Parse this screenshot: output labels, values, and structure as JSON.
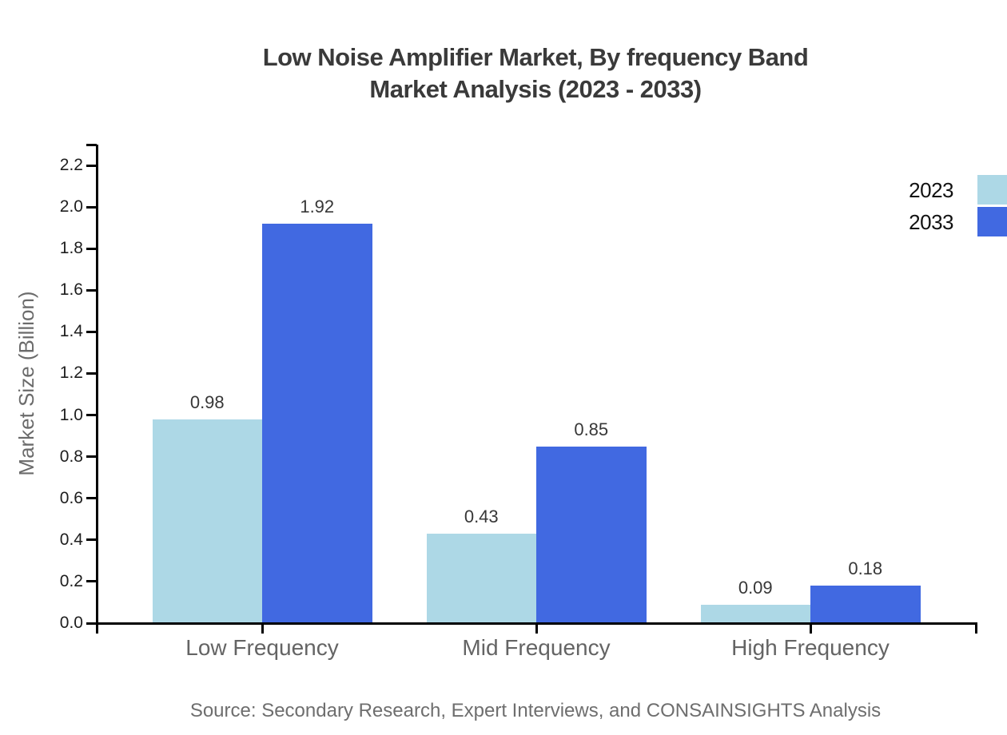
{
  "title": {
    "line1": "Low Noise Amplifier Market, By frequency Band",
    "line2": "Market Analysis (2023 - 2033)"
  },
  "source_text": "Source: Secondary Research, Expert Interviews, and CONSAINSIGHTS Analysis",
  "legend": [
    {
      "label": "2023",
      "color": "#ADD8E6"
    },
    {
      "label": "2033",
      "color": "#4169E1"
    }
  ],
  "chart_data": {
    "type": "bar",
    "title": "Low Noise Amplifier Market, By frequency Band Market Analysis (2023 - 2033)",
    "categories": [
      "Low Frequency",
      "Mid Frequency",
      "High Frequency"
    ],
    "series": [
      {
        "name": "2023",
        "color": "#ADD8E6",
        "values": [
          0.98,
          0.43,
          0.09
        ]
      },
      {
        "name": "2033",
        "color": "#4169E1",
        "values": [
          1.92,
          0.85,
          0.18
        ]
      }
    ],
    "ylabel": "Market Size (Billion)",
    "xlabel": "",
    "ylim": [
      0.0,
      2.2
    ],
    "ytick_step": 0.2,
    "yticks": [
      "0.0",
      "0.2",
      "0.4",
      "0.6",
      "0.8",
      "1.0",
      "1.2",
      "1.4",
      "1.6",
      "1.8",
      "2.0",
      "2.2"
    ],
    "grid": false,
    "legend_position": "top-right",
    "value_label_format": "2-decimals",
    "axis_color": "#000000",
    "background": "#ffffff"
  }
}
